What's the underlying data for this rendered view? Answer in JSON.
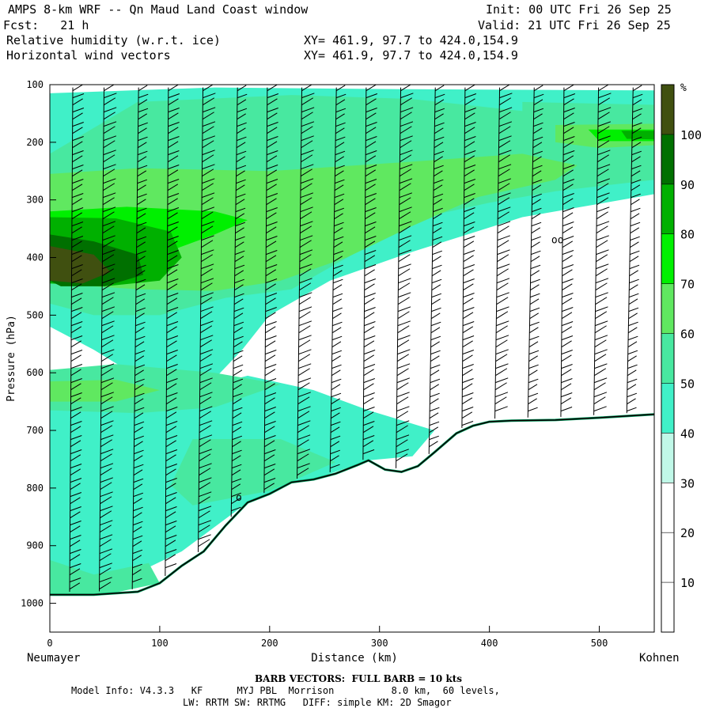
{
  "header": {
    "title": "AMPS 8-km WRF -- Qn Maud Land Coast window",
    "fcst": "Fcst:   21 h",
    "init": "Init: 00 UTC Fri 26 Sep 25",
    "valid": "Valid: 21 UTC Fri 26 Sep 25",
    "field1": "Relative humidity (w.r.t. ice)",
    "field2": "Horizontal wind vectors",
    "xy1": "XY= 461.9, 97.7 to 424.0,154.9",
    "xy2": "XY= 461.9, 97.7 to 424.0,154.9"
  },
  "places": {
    "left": "Neumayer",
    "right": "Kohnen"
  },
  "footer": {
    "barb": "BARB VECTORS:  FULL BARB = 10 kts",
    "line1": "Model Info: V4.3.3   KF      MYJ PBL  Morrison          8.0 km,  60 levels,",
    "line2": "LW: RRTM SW: RRTMG   DIFF: simple KM: 2D Smagor"
  },
  "chart_data": {
    "type": "heatmap",
    "title": "Relative humidity (w.r.t. ice) and horizontal wind vectors cross-section",
    "xlabel": "Distance (km)",
    "ylabel": "Pressure (hPa)",
    "xlim": [
      0,
      550
    ],
    "ylim": [
      1050,
      100
    ],
    "xticks": [
      0,
      100,
      200,
      300,
      400,
      500
    ],
    "yticks": [
      100,
      200,
      300,
      400,
      500,
      600,
      700,
      800,
      900,
      1000
    ],
    "colorbar": {
      "unit": "%",
      "levels": [
        10,
        20,
        30,
        40,
        50,
        60,
        70,
        80,
        90,
        100
      ],
      "colors": [
        "#ffffff",
        "#ffffff",
        "#ffffff",
        "#c0f8e8",
        "#40f0c8",
        "#48e8a0",
        "#60e860",
        "#00f000",
        "#00b000",
        "#007000",
        "#405010"
      ]
    },
    "terrain": {
      "distance": [
        0,
        40,
        80,
        100,
        120,
        140,
        160,
        180,
        200,
        220,
        240,
        260,
        280,
        290,
        305,
        320,
        335,
        350,
        370,
        385,
        400,
        420,
        460,
        500,
        550
      ],
      "pressure": [
        985,
        985,
        980,
        965,
        935,
        910,
        865,
        825,
        810,
        790,
        785,
        775,
        760,
        752,
        768,
        772,
        762,
        738,
        705,
        692,
        685,
        683,
        682,
        678,
        672
      ]
    },
    "rh_regions": [
      {
        "level": 40,
        "points": [
          [
            0,
            115
          ],
          [
            150,
            105
          ],
          [
            330,
            108
          ],
          [
            550,
            110
          ],
          [
            550,
            290
          ],
          [
            430,
            330
          ],
          [
            330,
            390
          ],
          [
            255,
            440
          ],
          [
            200,
            500
          ],
          [
            175,
            560
          ],
          [
            150,
            610
          ],
          [
            100,
            630
          ],
          [
            40,
            560
          ],
          [
            0,
            520
          ]
        ]
      },
      {
        "level": 40,
        "points": [
          [
            0,
            640
          ],
          [
            100,
            645
          ],
          [
            180,
            605
          ],
          [
            240,
            630
          ],
          [
            290,
            665
          ],
          [
            350,
            700
          ],
          [
            330,
            745
          ],
          [
            290,
            752
          ],
          [
            240,
            785
          ],
          [
            180,
            825
          ],
          [
            120,
            910
          ],
          [
            60,
            965
          ],
          [
            0,
            980
          ]
        ]
      },
      {
        "level": 50,
        "points": [
          [
            80,
            130
          ],
          [
            220,
            118
          ],
          [
            330,
            125
          ],
          [
            450,
            150
          ],
          [
            550,
            148
          ],
          [
            550,
            265
          ],
          [
            460,
            285
          ],
          [
            400,
            305
          ],
          [
            340,
            330
          ],
          [
            280,
            390
          ],
          [
            220,
            455
          ],
          [
            160,
            470
          ],
          [
            100,
            500
          ],
          [
            40,
            500
          ],
          [
            0,
            480
          ],
          [
            0,
            220
          ]
        ]
      },
      {
        "level": 50,
        "points": [
          [
            430,
            130
          ],
          [
            550,
            135
          ],
          [
            550,
            210
          ],
          [
            480,
            230
          ],
          [
            430,
            220
          ]
        ]
      },
      {
        "level": 50,
        "points": [
          [
            0,
            595
          ],
          [
            60,
            585
          ],
          [
            150,
            600
          ],
          [
            210,
            620
          ],
          [
            150,
            660
          ],
          [
            80,
            670
          ],
          [
            0,
            665
          ]
        ]
      },
      {
        "level": 50,
        "points": [
          [
            130,
            715
          ],
          [
            210,
            715
          ],
          [
            260,
            755
          ],
          [
            200,
            805
          ],
          [
            130,
            830
          ],
          [
            110,
            795
          ]
        ]
      },
      {
        "level": 50,
        "points": [
          [
            0,
            925
          ],
          [
            40,
            950
          ],
          [
            90,
            930
          ],
          [
            100,
            965
          ],
          [
            50,
            985
          ],
          [
            0,
            985
          ]
        ]
      },
      {
        "level": 60,
        "points": [
          [
            0,
            255
          ],
          [
            80,
            245
          ],
          [
            200,
            250
          ],
          [
            320,
            235
          ],
          [
            430,
            220
          ],
          [
            480,
            240
          ],
          [
            460,
            265
          ],
          [
            390,
            295
          ],
          [
            330,
            345
          ],
          [
            270,
            400
          ],
          [
            210,
            440
          ],
          [
            150,
            458
          ],
          [
            80,
            455
          ],
          [
            0,
            445
          ]
        ]
      },
      {
        "level": 60,
        "points": [
          [
            460,
            170
          ],
          [
            550,
            168
          ],
          [
            550,
            205
          ],
          [
            500,
            210
          ],
          [
            460,
            200
          ]
        ]
      },
      {
        "level": 60,
        "points": [
          [
            0,
            615
          ],
          [
            60,
            612
          ],
          [
            100,
            630
          ],
          [
            60,
            650
          ],
          [
            0,
            650
          ]
        ]
      },
      {
        "level": 70,
        "points": [
          [
            0,
            320
          ],
          [
            70,
            312
          ],
          [
            150,
            320
          ],
          [
            180,
            335
          ],
          [
            150,
            360
          ],
          [
            100,
            395
          ],
          [
            40,
            395
          ],
          [
            0,
            390
          ]
        ]
      },
      {
        "level": 70,
        "points": [
          [
            490,
            178
          ],
          [
            550,
            178
          ],
          [
            550,
            198
          ],
          [
            500,
            198
          ]
        ]
      },
      {
        "level": 80,
        "points": [
          [
            0,
            330
          ],
          [
            60,
            332
          ],
          [
            110,
            355
          ],
          [
            120,
            400
          ],
          [
            100,
            440
          ],
          [
            50,
            450
          ],
          [
            0,
            445
          ]
        ]
      },
      {
        "level": 80,
        "points": [
          [
            520,
            180
          ],
          [
            550,
            180
          ],
          [
            550,
            195
          ],
          [
            525,
            194
          ]
        ]
      },
      {
        "level": 90,
        "points": [
          [
            0,
            360
          ],
          [
            40,
            372
          ],
          [
            80,
            395
          ],
          [
            85,
            430
          ],
          [
            50,
            450
          ],
          [
            10,
            450
          ],
          [
            0,
            440
          ]
        ]
      },
      {
        "level": 100,
        "points": [
          [
            0,
            380
          ],
          [
            40,
            395
          ],
          [
            55,
            425
          ],
          [
            30,
            445
          ],
          [
            0,
            440
          ]
        ]
      }
    ],
    "wind_barb_columns_km": [
      18,
      45,
      75,
      105,
      135,
      165,
      195,
      225,
      255,
      285,
      315,
      345,
      375,
      405,
      435,
      465,
      495,
      525
    ],
    "annotations": [
      {
        "text": "oo",
        "distance": 462,
        "pressure": 375
      },
      {
        "text": "o",
        "distance": 172,
        "pressure": 822
      }
    ]
  }
}
